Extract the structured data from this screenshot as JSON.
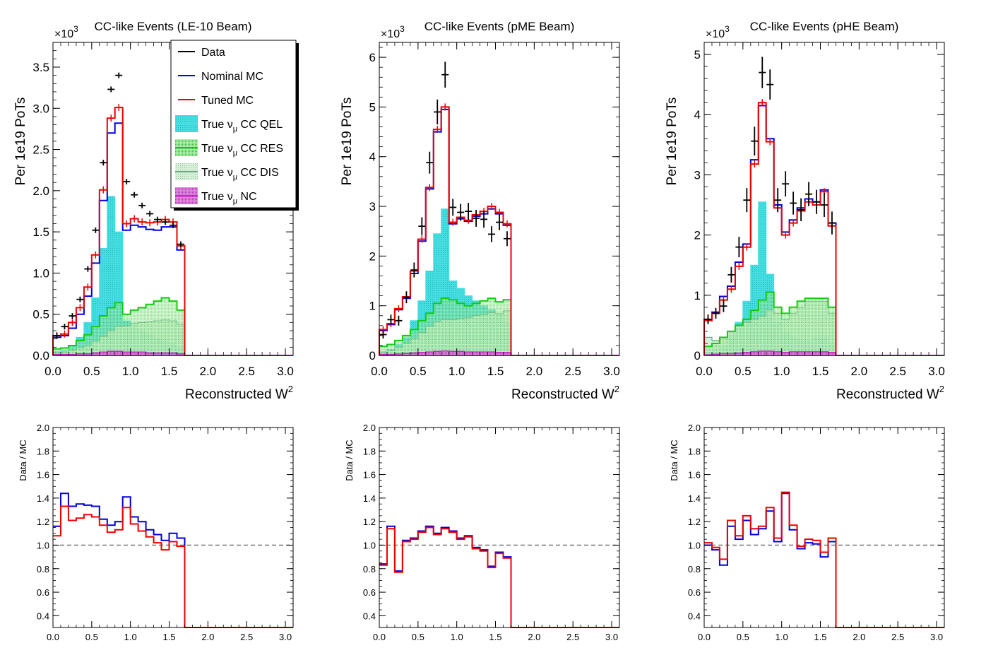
{
  "legend": {
    "entries": [
      {
        "label": "Data",
        "key": "data"
      },
      {
        "label": "Nominal MC",
        "key": "nominal"
      },
      {
        "label": "Tuned MC",
        "key": "tuned"
      },
      {
        "label": "True ν",
        "sub": "μ",
        "suffix": " CC QEL",
        "key": "qel"
      },
      {
        "label": "True ν",
        "sub": "μ",
        "suffix": " CC RES",
        "key": "res"
      },
      {
        "label": "True ν",
        "sub": "μ",
        "suffix": " CC DIS",
        "key": "dis"
      },
      {
        "label": "True ν",
        "sub": "μ",
        "suffix": " NC",
        "key": "nc"
      }
    ]
  },
  "colors": {
    "data": "#000000",
    "nominal": "#0000dd",
    "tuned": "#ee0000",
    "qel_fill": "#44dde0",
    "res_line": "#11cc11",
    "res_fill": "#aaeeaa",
    "dis_line": "#66aa88",
    "dis_fill": "#d8f0d8",
    "nc_line": "#cc22cc",
    "nc_fill": "#dd88dd",
    "ratio_ref": "#777777"
  },
  "chart_data": [
    {
      "type": "histogram",
      "title": "CC-like Events (LE-10 Beam)",
      "ylabel": "Per 1e19 PoTs",
      "xlabel": "Reconstructed W",
      "xlabel_sup": "2",
      "multiplier": "×10",
      "multiplier_exp": "3",
      "xlim": [
        0,
        3.1
      ],
      "ylim": [
        0,
        3.8
      ],
      "xticks": [
        "0.0",
        "0.5",
        "1.0",
        "1.5",
        "2.0",
        "2.5",
        "3.0"
      ],
      "yticks": [
        "0.0",
        "0.5",
        "1.0",
        "1.5",
        "2.0",
        "2.5",
        "3.0",
        "3.5"
      ],
      "bins": [
        0,
        0.1,
        0.2,
        0.3,
        0.4,
        0.5,
        0.6,
        0.7,
        0.8,
        0.9,
        1.0,
        1.1,
        1.2,
        1.3,
        1.4,
        1.5,
        1.6,
        1.7
      ],
      "nominal": [
        0.22,
        0.24,
        0.33,
        0.5,
        0.72,
        1.12,
        1.88,
        2.7,
        2.82,
        1.52,
        1.58,
        1.56,
        1.53,
        1.52,
        1.56,
        1.56,
        1.28
      ],
      "tuned": [
        0.24,
        0.26,
        0.4,
        0.58,
        0.83,
        1.22,
        2.01,
        2.88,
        3.01,
        1.6,
        1.66,
        1.62,
        1.61,
        1.62,
        1.65,
        1.62,
        1.33
      ],
      "qel": [
        0.05,
        0.06,
        0.12,
        0.22,
        0.4,
        0.7,
        1.3,
        1.93,
        1.5,
        0.42,
        0.36,
        0.3,
        0.25,
        0.21,
        0.18,
        0.15,
        0.1
      ],
      "res": [
        0.08,
        0.09,
        0.12,
        0.18,
        0.25,
        0.35,
        0.48,
        0.58,
        0.64,
        0.5,
        0.55,
        0.58,
        0.62,
        0.66,
        0.7,
        0.66,
        0.55
      ],
      "dis": [
        0.03,
        0.04,
        0.06,
        0.09,
        0.12,
        0.17,
        0.23,
        0.3,
        0.35,
        0.36,
        0.39,
        0.4,
        0.41,
        0.42,
        0.43,
        0.42,
        0.38
      ],
      "nc": [
        0.01,
        0.01,
        0.01,
        0.02,
        0.02,
        0.03,
        0.04,
        0.05,
        0.05,
        0.04,
        0.04,
        0.04,
        0.03,
        0.03,
        0.03,
        0.03,
        0.02
      ],
      "data": {
        "x": [
          0.05,
          0.15,
          0.25,
          0.35,
          0.45,
          0.55,
          0.65,
          0.75,
          0.85,
          0.95,
          1.05,
          1.15,
          1.25,
          1.35,
          1.45,
          1.55,
          1.65
        ],
        "y": [
          0.24,
          0.35,
          0.48,
          0.68,
          1.05,
          1.52,
          2.34,
          3.23,
          3.4,
          2.11,
          1.95,
          1.82,
          1.72,
          1.65,
          1.62,
          1.58,
          1.35
        ],
        "err": [
          0.01,
          0.01,
          0.01,
          0.01,
          0.01,
          0.01,
          0.01,
          0.01,
          0.01,
          0.01,
          0.01,
          0.01,
          0.01,
          0.01,
          0.01,
          0.01,
          0.01
        ]
      },
      "ratio": {
        "ylim": [
          0.3,
          2.0
        ],
        "yticks": [
          "0.4",
          "0.6",
          "0.8",
          "1.0",
          "1.2",
          "1.4",
          "1.6",
          "1.8",
          "2.0"
        ],
        "ylabel": "Data / MC",
        "nominal": [
          1.16,
          1.44,
          1.33,
          1.35,
          1.34,
          1.33,
          1.22,
          1.17,
          1.2,
          1.41,
          1.24,
          1.2,
          1.13,
          1.09,
          1.04,
          1.1,
          1.06
        ],
        "tuned": [
          1.08,
          1.33,
          1.21,
          1.23,
          1.26,
          1.24,
          1.17,
          1.11,
          1.13,
          1.32,
          1.18,
          1.12,
          1.07,
          1.02,
          0.96,
          1.03,
          0.99
        ]
      }
    },
    {
      "type": "histogram",
      "title": "CC-like Events (pME Beam)",
      "ylabel": "Per 1e19 PoTs",
      "xlabel": "Reconstructed W",
      "xlabel_sup": "2",
      "multiplier": "×10",
      "multiplier_exp": "3",
      "xlim": [
        0,
        3.1
      ],
      "ylim": [
        0,
        6.3
      ],
      "xticks": [
        "0.0",
        "0.5",
        "1.0",
        "1.5",
        "2.0",
        "2.5",
        "3.0"
      ],
      "yticks": [
        "0",
        "1",
        "2",
        "3",
        "4",
        "5",
        "6"
      ],
      "bins": [
        0,
        0.1,
        0.2,
        0.3,
        0.4,
        0.5,
        0.6,
        0.7,
        0.8,
        0.9,
        1.0,
        1.1,
        1.2,
        1.3,
        1.4,
        1.5,
        1.6,
        1.7
      ],
      "nominal": [
        0.5,
        0.62,
        0.92,
        1.15,
        1.65,
        2.3,
        3.35,
        4.5,
        4.95,
        2.65,
        2.75,
        2.7,
        2.8,
        2.85,
        2.95,
        2.85,
        2.62
      ],
      "tuned": [
        0.52,
        0.64,
        0.94,
        1.18,
        1.7,
        2.34,
        3.38,
        4.55,
        5.0,
        2.68,
        2.78,
        2.72,
        2.83,
        2.9,
        3.0,
        2.88,
        2.65
      ],
      "qel": [
        0.08,
        0.12,
        0.22,
        0.36,
        0.7,
        1.1,
        1.7,
        2.45,
        2.95,
        1.5,
        1.35,
        1.2,
        1.1,
        1.0,
        0.92,
        0.82,
        0.65
      ],
      "res": [
        0.18,
        0.22,
        0.3,
        0.4,
        0.52,
        0.7,
        0.85,
        1.05,
        1.15,
        1.12,
        1.05,
        1.0,
        1.05,
        1.1,
        1.15,
        1.08,
        1.12
      ],
      "dis": [
        0.06,
        0.1,
        0.16,
        0.24,
        0.34,
        0.46,
        0.58,
        0.68,
        0.72,
        0.72,
        0.74,
        0.76,
        0.8,
        0.82,
        0.86,
        0.84,
        0.9
      ],
      "nc": [
        0.02,
        0.02,
        0.03,
        0.04,
        0.05,
        0.06,
        0.07,
        0.08,
        0.09,
        0.08,
        0.08,
        0.07,
        0.07,
        0.07,
        0.07,
        0.06,
        0.06
      ],
      "data": {
        "x": [
          0.05,
          0.15,
          0.25,
          0.35,
          0.45,
          0.55,
          0.65,
          0.75,
          0.85,
          0.95,
          1.05,
          1.15,
          1.25,
          1.35,
          1.45,
          1.55,
          1.65
        ],
        "y": [
          0.42,
          0.72,
          0.7,
          1.17,
          1.72,
          2.6,
          3.88,
          4.9,
          5.65,
          2.98,
          2.88,
          2.9,
          2.76,
          2.74,
          2.44,
          2.68,
          2.35
        ],
        "err": [
          0.08,
          0.1,
          0.1,
          0.12,
          0.15,
          0.18,
          0.22,
          0.25,
          0.26,
          0.17,
          0.17,
          0.17,
          0.17,
          0.17,
          0.16,
          0.16,
          0.15
        ]
      },
      "ratio": {
        "ylim": [
          0.3,
          2.0
        ],
        "yticks": [
          "0.4",
          "0.6",
          "0.8",
          "1.0",
          "1.2",
          "1.4",
          "1.6",
          "1.8",
          "2.0"
        ],
        "ylabel": "Data / MC",
        "nominal": [
          0.84,
          1.16,
          0.78,
          1.04,
          1.06,
          1.12,
          1.16,
          1.1,
          1.15,
          1.12,
          1.06,
          1.08,
          0.98,
          0.96,
          0.82,
          0.94,
          0.9
        ],
        "tuned": [
          0.83,
          1.14,
          0.77,
          1.03,
          1.05,
          1.11,
          1.15,
          1.09,
          1.14,
          1.11,
          1.05,
          1.07,
          0.97,
          0.95,
          0.81,
          0.93,
          0.89
        ]
      }
    },
    {
      "type": "histogram",
      "title": "CC-like Events (pHE Beam)",
      "ylabel": "Per 1e19 PoTs",
      "xlabel": "Reconstructed W",
      "xlabel_sup": "2",
      "multiplier": "×10",
      "multiplier_exp": "3",
      "xlim": [
        0,
        3.1
      ],
      "ylim": [
        0,
        5.2
      ],
      "xticks": [
        "0.0",
        "0.5",
        "1.0",
        "1.5",
        "2.0",
        "2.5",
        "3.0"
      ],
      "yticks": [
        "0",
        "1",
        "2",
        "3",
        "4",
        "5"
      ],
      "bins": [
        0,
        0.1,
        0.2,
        0.3,
        0.4,
        0.5,
        0.6,
        0.7,
        0.8,
        0.9,
        1.0,
        1.1,
        1.2,
        1.3,
        1.4,
        1.5,
        1.6,
        1.7
      ],
      "nominal": [
        0.6,
        0.72,
        0.98,
        1.15,
        1.55,
        1.85,
        3.25,
        4.15,
        3.6,
        2.5,
        2.05,
        2.25,
        2.45,
        2.6,
        2.55,
        2.75,
        2.2
      ],
      "tuned": [
        0.58,
        0.7,
        0.92,
        1.1,
        1.48,
        1.8,
        3.18,
        4.2,
        3.55,
        2.45,
        2.0,
        2.2,
        2.4,
        2.55,
        2.5,
        2.72,
        2.15
      ],
      "qel": [
        0.05,
        0.08,
        0.15,
        0.3,
        0.55,
        0.9,
        1.5,
        2.55,
        1.35,
        0.55,
        0.4,
        0.3,
        0.25,
        0.25,
        0.3,
        0.3,
        0.2
      ],
      "res": [
        0.15,
        0.2,
        0.3,
        0.4,
        0.5,
        0.6,
        0.75,
        0.92,
        1.05,
        0.8,
        0.7,
        0.8,
        0.9,
        0.95,
        0.95,
        0.95,
        0.8
      ],
      "dis": [
        0.3,
        0.25,
        0.3,
        0.4,
        0.5,
        0.55,
        0.6,
        0.65,
        0.75,
        0.7,
        0.6,
        0.7,
        0.8,
        0.9,
        0.9,
        0.9,
        0.7
      ],
      "nc": [
        0.01,
        0.02,
        0.03,
        0.03,
        0.04,
        0.05,
        0.06,
        0.07,
        0.07,
        0.06,
        0.05,
        0.06,
        0.06,
        0.06,
        0.06,
        0.06,
        0.05
      ],
      "data": {
        "x": [
          0.05,
          0.15,
          0.25,
          0.35,
          0.45,
          0.55,
          0.65,
          0.75,
          0.85,
          0.95,
          1.05,
          1.15,
          1.25,
          1.35,
          1.45,
          1.55,
          1.65
        ],
        "y": [
          0.6,
          0.7,
          0.82,
          1.34,
          1.8,
          2.58,
          3.56,
          4.7,
          4.5,
          2.58,
          2.85,
          2.53,
          2.42,
          2.68,
          2.55,
          2.5,
          2.2
        ],
        "err": [
          0.08,
          0.09,
          0.1,
          0.13,
          0.17,
          0.2,
          0.24,
          0.26,
          0.25,
          0.2,
          0.21,
          0.19,
          0.19,
          0.2,
          0.2,
          0.2,
          0.19
        ]
      },
      "ratio": {
        "ylim": [
          0.3,
          2.0
        ],
        "yticks": [
          "0.4",
          "0.6",
          "0.8",
          "1.0",
          "1.2",
          "1.4",
          "1.6",
          "1.8",
          "2.0"
        ],
        "ylabel": "Data / MC",
        "nominal": [
          1.0,
          0.96,
          0.83,
          1.16,
          1.05,
          1.21,
          1.09,
          1.14,
          1.29,
          1.03,
          1.44,
          1.13,
          0.97,
          1.02,
          1.01,
          0.9,
          1.03
        ],
        "tuned": [
          1.02,
          0.98,
          0.88,
          1.21,
          1.08,
          1.25,
          1.14,
          1.16,
          1.32,
          1.06,
          1.45,
          1.17,
          0.99,
          1.05,
          1.04,
          0.94,
          1.06
        ]
      }
    }
  ]
}
